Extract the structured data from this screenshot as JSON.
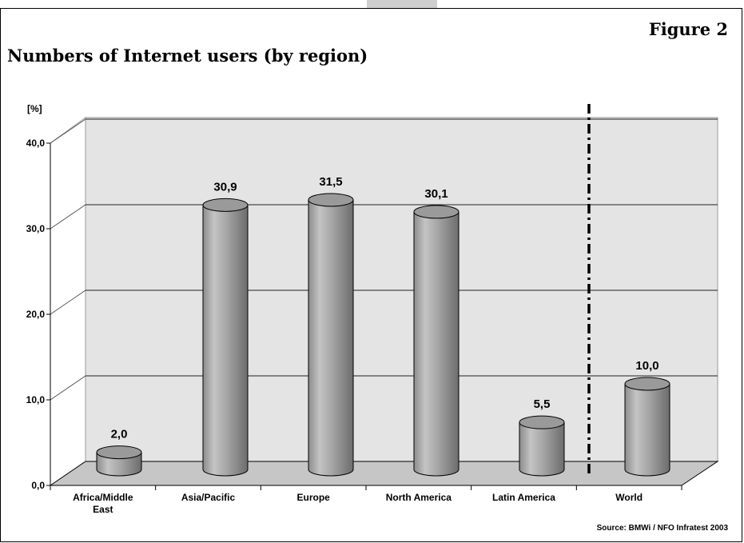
{
  "header": {
    "figure_label": "Figure 2",
    "title": "Numbers of Internet users (by region)"
  },
  "source": "Source: BMWi / NFO Infratest 2003",
  "chart_data": {
    "type": "bar",
    "title": "Numbers of Internet users (by region)",
    "ylabel": "[%]",
    "xlabel": "",
    "ylim": [
      0,
      40
    ],
    "yticks": [
      "0,0",
      "10,0",
      "20,0",
      "30,0",
      "40,0"
    ],
    "categories": [
      [
        "Africa/Middle",
        "East"
      ],
      [
        "Asia/Pacific"
      ],
      [
        "Europe"
      ],
      [
        "North America"
      ],
      [
        "Latin America"
      ],
      [
        "World"
      ]
    ],
    "values": [
      2.0,
      30.9,
      31.5,
      30.1,
      5.5,
      10.0
    ],
    "value_labels": [
      "2,0",
      "30,9",
      "31,5",
      "30,1",
      "5,5",
      "10,0"
    ],
    "grid": true,
    "separator_before_category": "World",
    "colors": {
      "bar": "#a6a6a6",
      "plot_back": "#e4e4e4",
      "plot_floor": "#c6c6c6"
    }
  }
}
